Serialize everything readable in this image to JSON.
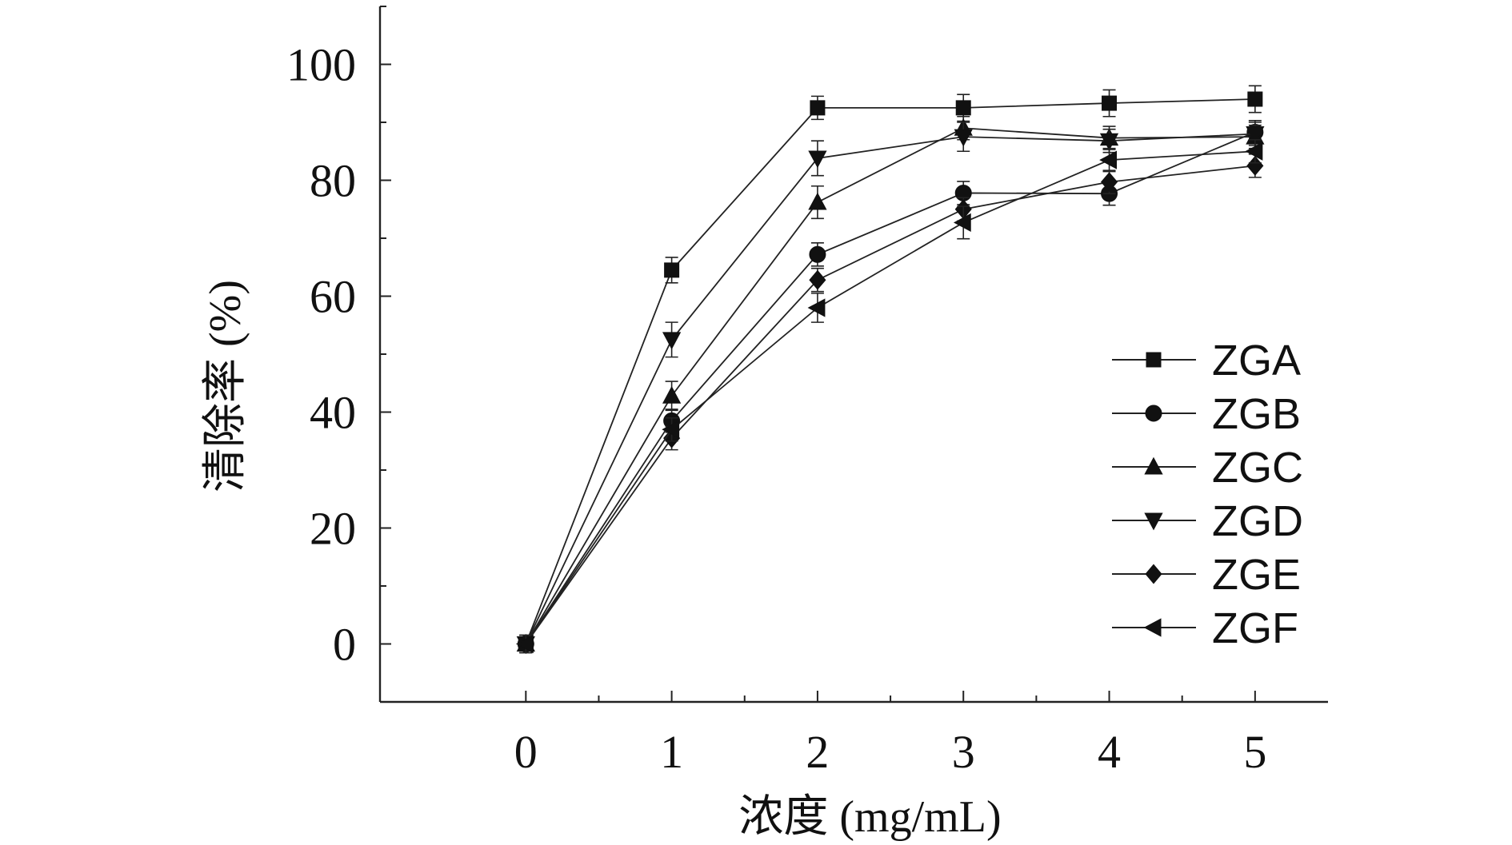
{
  "chart_data": {
    "type": "line",
    "title": "",
    "xlabel": "浓度 (mg/mL)",
    "ylabel": "清除率 (%)",
    "x": [
      0,
      1,
      2,
      3,
      4,
      5
    ],
    "xlim": [
      -1,
      5.5
    ],
    "ylim": [
      -10,
      110
    ],
    "xticks": [
      0,
      1,
      2,
      3,
      4,
      5
    ],
    "yticks": [
      0,
      20,
      40,
      60,
      80,
      100
    ],
    "grid": false,
    "legend_position": "right",
    "series": [
      {
        "name": "ZGA",
        "marker": "square",
        "values": [
          0,
          64.5,
          92.5,
          92.5,
          93.3,
          94.0
        ],
        "errors": [
          1.5,
          2.2,
          2.0,
          2.3,
          2.3,
          2.3
        ]
      },
      {
        "name": "ZGB",
        "marker": "circle",
        "values": [
          0,
          38.5,
          67.2,
          77.8,
          77.7,
          88.3
        ],
        "errors": [
          1.5,
          2.0,
          2.0,
          2.0,
          2.0,
          2.0
        ]
      },
      {
        "name": "ZGC",
        "marker": "triangle-up",
        "values": [
          0,
          42.8,
          76.2,
          89.0,
          87.3,
          87.5
        ],
        "errors": [
          1.5,
          2.5,
          2.8,
          2.0,
          2.0,
          2.0
        ]
      },
      {
        "name": "ZGD",
        "marker": "triangle-down",
        "values": [
          0,
          52.5,
          83.8,
          87.5,
          86.8,
          88.0
        ],
        "errors": [
          1.5,
          3.0,
          3.0,
          2.5,
          2.0,
          2.0
        ]
      },
      {
        "name": "ZGE",
        "marker": "diamond",
        "values": [
          0,
          35.5,
          62.8,
          75.0,
          79.7,
          82.5
        ],
        "errors": [
          1.5,
          2.0,
          2.0,
          2.0,
          2.0,
          2.0
        ]
      },
      {
        "name": "ZGF",
        "marker": "triangle-left",
        "values": [
          0,
          37.0,
          58.0,
          72.7,
          83.5,
          85.0
        ],
        "errors": [
          1.5,
          2.0,
          2.5,
          2.8,
          2.0,
          2.0
        ]
      }
    ]
  }
}
